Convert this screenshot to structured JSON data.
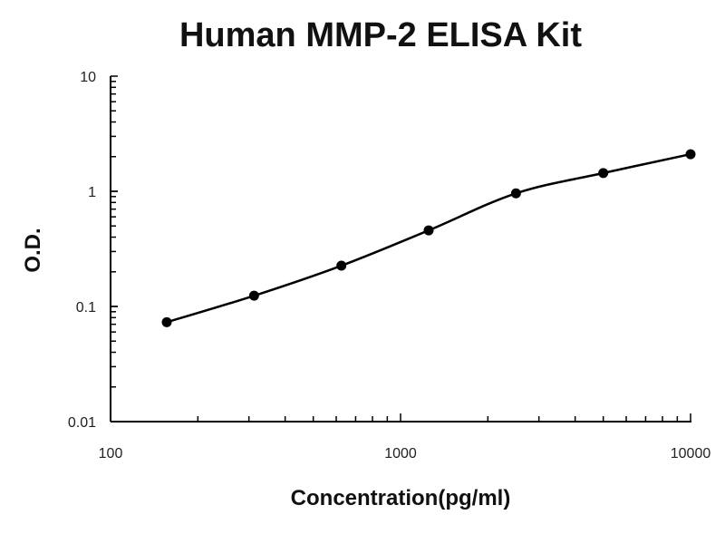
{
  "chart_data": {
    "type": "scatter",
    "title": "Human MMP-2 ELISA Kit",
    "xlabel": "Concentration(pg/ml)",
    "ylabel": "O.D.",
    "x_scale": "log",
    "y_scale": "log",
    "xlim": [
      100,
      10000
    ],
    "ylim": [
      0.01,
      10
    ],
    "x_ticks": [
      "100",
      "1000",
      "10000"
    ],
    "y_ticks": [
      "0.01",
      "0.1",
      "1",
      "10"
    ],
    "grid": false,
    "x": [
      156.25,
      312.5,
      625,
      1250,
      2500,
      5000,
      10000
    ],
    "y": [
      0.073,
      0.124,
      0.226,
      0.458,
      0.96,
      1.44,
      2.1
    ],
    "fit_curve": true,
    "color": "#000000"
  }
}
